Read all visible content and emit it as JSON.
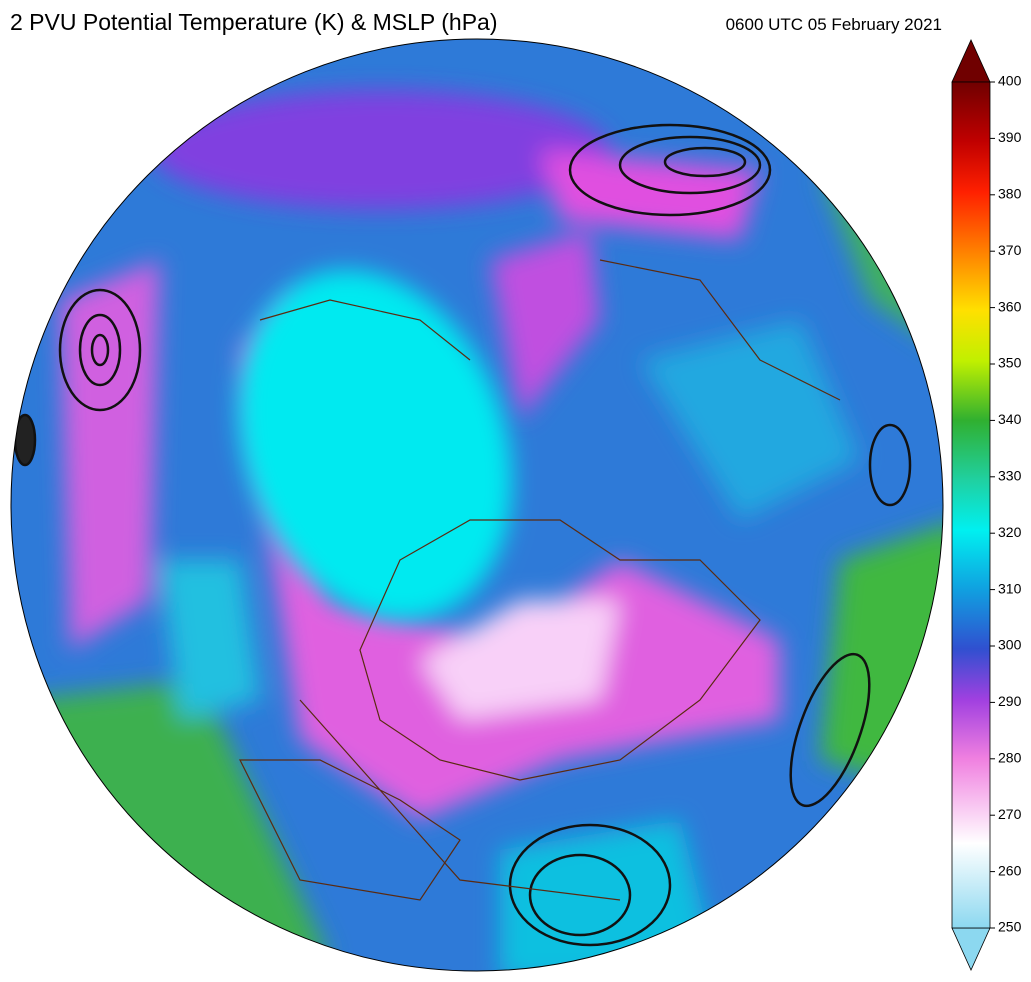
{
  "title": "2 PVU Potential Temperature (K) & MSLP (hPa)",
  "timestamp": "0600 UTC 05 February 2021",
  "colorbar": {
    "lim": [
      250,
      400
    ],
    "ticks": [
      250,
      260,
      270,
      280,
      290,
      300,
      310,
      320,
      330,
      340,
      350,
      360,
      370,
      380,
      390,
      400
    ]
  }
}
